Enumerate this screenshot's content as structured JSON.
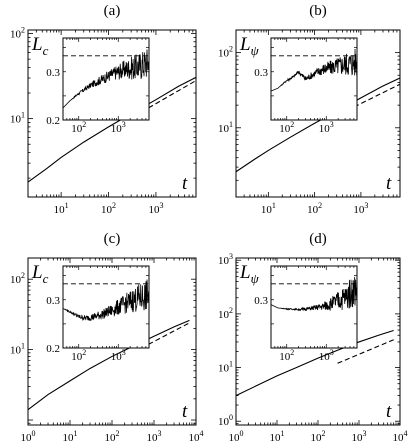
{
  "chart_data": [
    {
      "type": "line",
      "panel": "(a)",
      "ylabel_main": "L",
      "ylabel_sub": "c",
      "xlabel": "t",
      "xscale": "log",
      "yscale": "log",
      "xlim": [
        2,
        7000
      ],
      "ylim": [
        1.2,
        110
      ],
      "xticks": [
        10,
        100,
        1000
      ],
      "xticklabels": [
        "10^1",
        "10^2",
        "10^3"
      ],
      "yticks": [
        10,
        100
      ],
      "yticklabels": [
        "10^1",
        "10^2"
      ],
      "series": [
        {
          "style": "solid",
          "x": [
            2,
            5,
            10,
            30,
            100,
            300,
            1000,
            3000,
            7000
          ],
          "y": [
            1.8,
            2.6,
            3.5,
            5.3,
            8.0,
            11.4,
            16.7,
            24.0,
            30.5
          ]
        },
        {
          "style": "dashed",
          "x": [
            500,
            7000
          ],
          "y": [
            12.0,
            28.0
          ]
        }
      ],
      "inset": {
        "type": "line",
        "xscale": "log",
        "xlim": [
          40,
          6000
        ],
        "ylim": [
          0.2,
          0.37
        ],
        "xticks": [
          100,
          1000
        ],
        "xticklabels": [
          "10^2",
          "10^3"
        ],
        "yticks": [
          0.2,
          0.3
        ],
        "yticklabels": [
          "0.2",
          "0.3"
        ],
        "reference_y": 0.333,
        "series_x": [
          40,
          60,
          100,
          200,
          400,
          800,
          1500,
          3000,
          6000
        ],
        "series_y": [
          0.225,
          0.24,
          0.255,
          0.272,
          0.285,
          0.297,
          0.305,
          0.31,
          0.32
        ],
        "noise": [
          0,
          0,
          0.003,
          0.006,
          0.01,
          0.014,
          0.02,
          0.028,
          0.035
        ]
      }
    },
    {
      "type": "line",
      "panel": "(b)",
      "ylabel_main": "L",
      "ylabel_sub": "ψ",
      "xlabel": "t",
      "xscale": "log",
      "yscale": "log",
      "xlim": [
        2,
        7000
      ],
      "ylim": [
        1.2,
        200
      ],
      "xticks": [
        10,
        100,
        1000
      ],
      "xticklabels": [
        "10^1",
        "10^2",
        "10^3"
      ],
      "yticks": [
        10,
        100
      ],
      "yticklabels": [
        "10^1",
        "10^2"
      ],
      "series": [
        {
          "style": "solid",
          "x": [
            2,
            5,
            10,
            30,
            100,
            300,
            1000,
            3000,
            7000
          ],
          "y": [
            2.6,
            3.8,
            5.0,
            7.5,
            11.5,
            16.5,
            25.0,
            36.0,
            46.0
          ]
        },
        {
          "style": "dashed",
          "x": [
            500,
            7000
          ],
          "y": [
            17.0,
            38.0
          ]
        }
      ],
      "inset": {
        "type": "line",
        "xscale": "log",
        "xlim": [
          40,
          6000
        ],
        "ylim": [
          0.2,
          0.37
        ],
        "xticks": [
          100,
          1000
        ],
        "xticklabels": [
          "10^2",
          "10^3"
        ],
        "yticks": [
          0.3
        ],
        "yticklabels": [
          "0.3"
        ],
        "reference_y": 0.333,
        "series_x": [
          40,
          60,
          100,
          150,
          200,
          300,
          500,
          800,
          1500,
          3000,
          6000
        ],
        "series_y": [
          0.26,
          0.266,
          0.282,
          0.29,
          0.3,
          0.285,
          0.296,
          0.305,
          0.31,
          0.316,
          0.32
        ],
        "noise": [
          0,
          0,
          0.002,
          0.003,
          0.004,
          0.006,
          0.008,
          0.012,
          0.016,
          0.024,
          0.032
        ]
      }
    },
    {
      "type": "line",
      "panel": "(c)",
      "ylabel_main": "L",
      "ylabel_sub": "c",
      "xlabel": "t",
      "xscale": "log",
      "yscale": "log",
      "xlim": [
        1,
        10000
      ],
      "ylim": [
        0.85,
        200
      ],
      "xticks": [
        1,
        10,
        100,
        1000,
        10000
      ],
      "xticklabels": [
        "10^0",
        "10^1",
        "10^2",
        "10^3",
        "10^4"
      ],
      "yticks": [
        10,
        100
      ],
      "yticklabels": [
        "10^1",
        "10^2"
      ],
      "series": [
        {
          "style": "solid",
          "x": [
            1,
            3,
            10,
            30,
            100,
            300,
            1000,
            3000,
            7000
          ],
          "y": [
            1.4,
            2.3,
            3.6,
            5.4,
            8.0,
            11.0,
            15.5,
            21.0,
            26.0
          ]
        },
        {
          "style": "dashed",
          "x": [
            500,
            7000
          ],
          "y": [
            10.5,
            24.0
          ]
        }
      ],
      "inset": {
        "type": "line",
        "xscale": "log",
        "xlim": [
          40,
          6000
        ],
        "ylim": [
          0.2,
          0.37
        ],
        "xticks": [
          100,
          1000
        ],
        "xticklabels": [
          "10^2",
          "10^3"
        ],
        "yticks": [
          0.2,
          0.3
        ],
        "yticklabels": [
          "0.2",
          "0.3"
        ],
        "reference_y": 0.333,
        "series_x": [
          40,
          60,
          100,
          150,
          250,
          400,
          700,
          1200,
          2500,
          6000
        ],
        "series_y": [
          0.282,
          0.275,
          0.265,
          0.262,
          0.265,
          0.27,
          0.278,
          0.288,
          0.3,
          0.31
        ],
        "noise": [
          0,
          0.002,
          0.004,
          0.006,
          0.008,
          0.01,
          0.013,
          0.018,
          0.026,
          0.035
        ]
      }
    },
    {
      "type": "line",
      "panel": "(d)",
      "ylabel_main": "L",
      "ylabel_sub": "ψ",
      "xlabel": "t",
      "xscale": "log",
      "yscale": "log",
      "xlim": [
        1,
        10000
      ],
      "ylim": [
        0.85,
        1100
      ],
      "xticks": [
        1,
        10,
        100,
        1000,
        10000
      ],
      "xticklabels": [
        "10^0",
        "10^1",
        "10^2",
        "10^3",
        "10^4"
      ],
      "yticks": [
        1,
        10,
        100,
        1000
      ],
      "yticklabels": [
        "10^0",
        "10^1",
        "10^2",
        "10^3"
      ],
      "series": [
        {
          "style": "solid",
          "x": [
            1,
            3,
            10,
            30,
            100,
            300,
            1000,
            3000,
            7000
          ],
          "y": [
            3.0,
            4.5,
            7.0,
            10.0,
            15.0,
            21.0,
            30.0,
            40.0,
            49.0
          ]
        },
        {
          "style": "dashed",
          "x": [
            300,
            7000
          ],
          "y": [
            12.0,
            33.0
          ]
        }
      ],
      "inset": {
        "type": "line",
        "xscale": "log",
        "xlim": [
          40,
          6000
        ],
        "ylim": [
          0.2,
          0.37
        ],
        "xticks": [
          100,
          1000
        ],
        "xticklabels": [
          "10^2",
          "10^3"
        ],
        "yticks": [
          0.3
        ],
        "yticklabels": [
          "0.3"
        ],
        "reference_y": 0.333,
        "series_x": [
          40,
          60,
          100,
          200,
          400,
          800,
          1500,
          3000,
          6000
        ],
        "series_y": [
          0.29,
          0.283,
          0.281,
          0.28,
          0.282,
          0.286,
          0.293,
          0.305,
          0.325
        ],
        "noise": [
          0,
          0,
          0.001,
          0.002,
          0.004,
          0.008,
          0.016,
          0.026,
          0.038
        ]
      }
    }
  ]
}
